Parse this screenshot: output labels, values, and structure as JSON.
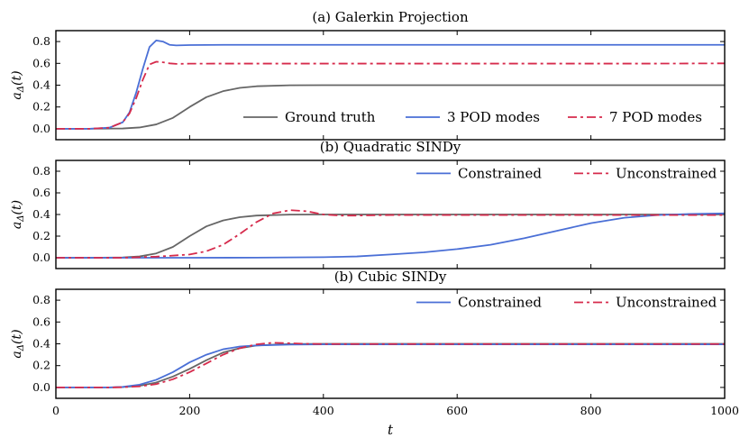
{
  "chart_data": [
    {
      "type": "line",
      "title": "(a) Galerkin Projection",
      "xlabel": "",
      "ylabel": "a_Δ(t)",
      "xlim": [
        0,
        1000
      ],
      "ylim": [
        -0.1,
        0.9
      ],
      "yticks": [
        "0.0",
        "0.2",
        "0.4",
        "0.6",
        "0.8"
      ],
      "grid": false,
      "legend": "bottom-right",
      "series": [
        {
          "name": "Ground truth",
          "color": "#666666",
          "style": "solid",
          "x": [
            0,
            50,
            100,
            125,
            150,
            175,
            200,
            225,
            250,
            275,
            300,
            350,
            400,
            500,
            600,
            700,
            800,
            900,
            1000
          ],
          "values": [
            0.0,
            0.0,
            0.003,
            0.012,
            0.04,
            0.1,
            0.2,
            0.29,
            0.345,
            0.375,
            0.39,
            0.399,
            0.4,
            0.4,
            0.4,
            0.4,
            0.4,
            0.4,
            0.4
          ]
        },
        {
          "name": "3 POD modes",
          "color": "#4a6fd6",
          "style": "solid",
          "x": [
            0,
            50,
            80,
            100,
            110,
            120,
            130,
            140,
            150,
            160,
            170,
            180,
            200,
            250,
            300,
            400,
            500,
            600,
            700,
            800,
            900,
            1000
          ],
          "values": [
            0.0,
            0.0,
            0.01,
            0.06,
            0.15,
            0.33,
            0.55,
            0.75,
            0.81,
            0.8,
            0.77,
            0.765,
            0.768,
            0.77,
            0.77,
            0.77,
            0.77,
            0.77,
            0.77,
            0.77,
            0.77,
            0.77
          ]
        },
        {
          "name": "7 POD modes",
          "color": "#d62b4c",
          "style": "dashed",
          "x": [
            0,
            50,
            80,
            100,
            110,
            120,
            130,
            140,
            150,
            160,
            170,
            180,
            200,
            250,
            300,
            400,
            500,
            600,
            700,
            800,
            900,
            1000
          ],
          "values": [
            0.0,
            0.0,
            0.01,
            0.06,
            0.14,
            0.28,
            0.45,
            0.59,
            0.615,
            0.61,
            0.6,
            0.595,
            0.597,
            0.598,
            0.598,
            0.598,
            0.598,
            0.598,
            0.598,
            0.598,
            0.598,
            0.6
          ]
        }
      ]
    },
    {
      "type": "line",
      "title": "(b) Quadratic SINDy",
      "xlabel": "",
      "ylabel": "a_Δ(t)",
      "xlim": [
        0,
        1000
      ],
      "ylim": [
        -0.1,
        0.9
      ],
      "yticks": [
        "0.0",
        "0.2",
        "0.4",
        "0.6",
        "0.8"
      ],
      "grid": false,
      "legend": "top-right",
      "series": [
        {
          "name": "Ground truth",
          "color": "#666666",
          "style": "solid",
          "legend": false,
          "x": [
            0,
            50,
            100,
            125,
            150,
            175,
            200,
            225,
            250,
            275,
            300,
            350,
            400,
            500,
            600,
            700,
            800,
            900,
            1000
          ],
          "values": [
            0.0,
            0.0,
            0.003,
            0.012,
            0.04,
            0.1,
            0.2,
            0.29,
            0.345,
            0.375,
            0.39,
            0.399,
            0.4,
            0.4,
            0.4,
            0.4,
            0.4,
            0.4,
            0.4
          ]
        },
        {
          "name": "Constrained",
          "color": "#4a6fd6",
          "style": "solid",
          "x": [
            0,
            200,
            300,
            400,
            450,
            500,
            550,
            600,
            650,
            700,
            750,
            800,
            850,
            900,
            950,
            1000
          ],
          "values": [
            0.0,
            0.0,
            0.001,
            0.005,
            0.012,
            0.03,
            0.05,
            0.08,
            0.12,
            0.18,
            0.25,
            0.32,
            0.37,
            0.395,
            0.405,
            0.41
          ]
        },
        {
          "name": "Unconstrained",
          "color": "#d62b4c",
          "style": "dashed",
          "x": [
            0,
            100,
            150,
            200,
            225,
            250,
            275,
            300,
            325,
            350,
            375,
            400,
            425,
            450,
            500,
            600,
            700,
            800,
            900,
            1000
          ],
          "values": [
            0.0,
            0.0,
            0.01,
            0.03,
            0.06,
            0.12,
            0.22,
            0.33,
            0.41,
            0.44,
            0.43,
            0.4,
            0.39,
            0.39,
            0.395,
            0.395,
            0.395,
            0.395,
            0.395,
            0.395
          ]
        }
      ]
    },
    {
      "type": "line",
      "title": "(b) Cubic SINDy",
      "xlabel": "t",
      "ylabel": "a_Δ(t)",
      "xlim": [
        0,
        1000
      ],
      "ylim": [
        -0.1,
        0.9
      ],
      "xticks": [
        "0",
        "200",
        "400",
        "600",
        "800",
        "1000"
      ],
      "yticks": [
        "0.0",
        "0.2",
        "0.4",
        "0.6",
        "0.8"
      ],
      "grid": false,
      "legend": "top-right",
      "series": [
        {
          "name": "Ground truth",
          "color": "#666666",
          "style": "solid",
          "legend": false,
          "x": [
            0,
            80,
            100,
            125,
            150,
            175,
            200,
            225,
            250,
            275,
            300,
            350,
            400,
            500,
            600,
            700,
            800,
            900,
            1000
          ],
          "values": [
            0.0,
            0.0,
            0.003,
            0.015,
            0.045,
            0.1,
            0.17,
            0.25,
            0.32,
            0.36,
            0.385,
            0.398,
            0.4,
            0.4,
            0.4,
            0.4,
            0.4,
            0.4,
            0.4
          ]
        },
        {
          "name": "Constrained",
          "color": "#4a6fd6",
          "style": "solid",
          "x": [
            0,
            80,
            100,
            125,
            150,
            175,
            200,
            225,
            250,
            275,
            300,
            350,
            400,
            500,
            600,
            700,
            800,
            900,
            1000
          ],
          "values": [
            0.0,
            0.0,
            0.005,
            0.025,
            0.07,
            0.14,
            0.23,
            0.3,
            0.35,
            0.375,
            0.385,
            0.393,
            0.395,
            0.395,
            0.395,
            0.395,
            0.395,
            0.395,
            0.395
          ]
        },
        {
          "name": "Unconstrained",
          "color": "#d62b4c",
          "style": "dashed",
          "x": [
            0,
            80,
            100,
            125,
            150,
            175,
            200,
            225,
            250,
            275,
            300,
            325,
            350,
            375,
            400,
            500,
            600,
            700,
            800,
            900,
            1000
          ],
          "values": [
            0.0,
            0.0,
            0.002,
            0.01,
            0.03,
            0.075,
            0.14,
            0.22,
            0.3,
            0.36,
            0.395,
            0.41,
            0.405,
            0.4,
            0.398,
            0.398,
            0.398,
            0.398,
            0.398,
            0.398,
            0.398
          ]
        }
      ]
    }
  ]
}
